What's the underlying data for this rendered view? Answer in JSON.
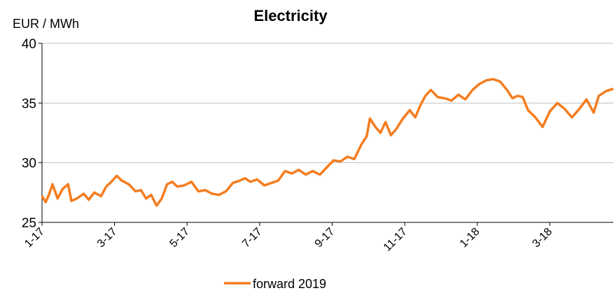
{
  "chart_data": {
    "type": "line",
    "title": "Electricity",
    "y_label": "EUR / MWh",
    "x": [
      0,
      0.1,
      0.19,
      0.29,
      0.43,
      0.57,
      0.72,
      0.81,
      0.96,
      1.15,
      1.29,
      1.44,
      1.63,
      1.77,
      1.91,
      2.06,
      2.2,
      2.39,
      2.58,
      2.73,
      2.87,
      3.01,
      3.16,
      3.3,
      3.45,
      3.59,
      3.73,
      3.92,
      4.12,
      4.31,
      4.5,
      4.69,
      4.88,
      5.07,
      5.26,
      5.45,
      5.6,
      5.74,
      5.93,
      6.13,
      6.32,
      6.51,
      6.7,
      6.89,
      7.08,
      7.27,
      7.46,
      7.66,
      7.85,
      8.04,
      8.23,
      8.42,
      8.61,
      8.8,
      8.95,
      9.04,
      9.19,
      9.33,
      9.47,
      9.62,
      9.76,
      9.95,
      10.14,
      10.29,
      10.43,
      10.57,
      10.72,
      10.91,
      11.1,
      11.29,
      11.48,
      11.67,
      11.87,
      12.06,
      12.25,
      12.44,
      12.63,
      12.82,
      12.97,
      13.11,
      13.25,
      13.4,
      13.6,
      13.8,
      14.0,
      14.21,
      14.41,
      14.61,
      14.81,
      15.01,
      15.21,
      15.35,
      15.55,
      15.75
    ],
    "series": [
      {
        "name": "forward 2019",
        "color": "#f47d20",
        "values": [
          27.2,
          26.7,
          27.3,
          28.2,
          27.0,
          27.8,
          28.2,
          26.8,
          27.0,
          27.4,
          26.9,
          27.5,
          27.2,
          28.0,
          28.4,
          28.9,
          28.5,
          28.2,
          27.6,
          27.7,
          27.0,
          27.3,
          26.4,
          27.0,
          28.2,
          28.4,
          28.0,
          28.1,
          28.4,
          27.6,
          27.7,
          27.4,
          27.3,
          27.6,
          28.3,
          28.5,
          28.7,
          28.4,
          28.6,
          28.1,
          28.3,
          28.5,
          29.3,
          29.1,
          29.4,
          29.0,
          29.3,
          29.0,
          29.6,
          30.2,
          30.1,
          30.5,
          30.3,
          31.5,
          32.2,
          33.7,
          33.0,
          32.5,
          33.4,
          32.3,
          32.8,
          33.7,
          34.4,
          33.8,
          34.8,
          35.6,
          36.1,
          35.5,
          35.4,
          35.2,
          35.7,
          35.3,
          36.1,
          36.6,
          36.9,
          37.0,
          36.8,
          36.1,
          35.4,
          35.6,
          35.5,
          34.4,
          33.8,
          33.0,
          34.3,
          35.0,
          34.5,
          33.8,
          34.5,
          35.3,
          34.2,
          35.6,
          36.0,
          36.2
        ]
      }
    ],
    "xlim": [
      0,
      15.75
    ],
    "xticks": [
      {
        "value": 0,
        "label": "1-17"
      },
      {
        "value": 2,
        "label": "3-17"
      },
      {
        "value": 4,
        "label": "5-17"
      },
      {
        "value": 6,
        "label": "7-17"
      },
      {
        "value": 8,
        "label": "9-17"
      },
      {
        "value": 10,
        "label": "11-17"
      },
      {
        "value": 12,
        "label": "1-18"
      },
      {
        "value": 14,
        "label": "3-18"
      }
    ],
    "ylim": [
      25,
      40
    ],
    "yticks": [
      25,
      30,
      35,
      40
    ],
    "grid": true,
    "legend": "bottom"
  }
}
